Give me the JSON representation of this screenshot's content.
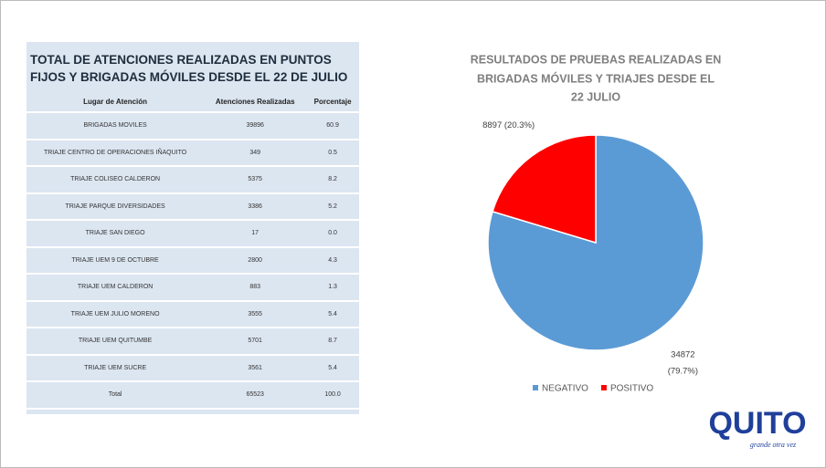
{
  "table": {
    "title": [
      "TOTAL DE ATENCIONES REALIZADAS EN PUNTOS",
      "FIJOS Y BRIGADAS MÓVILES DESDE EL 22 DE JULIO"
    ],
    "header": [
      "Lugar de Atención",
      "Atenciones Realizadas",
      "Porcentaje"
    ],
    "rows": [
      [
        "BRIGADAS MOVILES",
        "39896",
        "60.9"
      ],
      [
        "TRIAJE CENTRO DE OPERACIONES IÑAQUITO",
        "349",
        "0.5"
      ],
      [
        "TRIAJE COLISEO CALDERON",
        "5375",
        "8.2"
      ],
      [
        "TRIAJE PARQUE DIVERSIDADES",
        "3386",
        "5.2"
      ],
      [
        "TRIAJE SAN DIEGO",
        "17",
        "0.0"
      ],
      [
        "TRIAJE UEM 9 DE OCTUBRE",
        "2800",
        "4.3"
      ],
      [
        "TRIAJE UEM CALDERON",
        "883",
        "1.3"
      ],
      [
        "TRIAJE UEM JULIO MORENO",
        "3555",
        "5.4"
      ],
      [
        "TRIAJE UEM QUITUMBE",
        "5701",
        "8.7"
      ],
      [
        "TRIAJE UEM SUCRE",
        "3561",
        "5.4"
      ],
      [
        "Total",
        "65523",
        "100.0"
      ]
    ]
  },
  "chart_data": {
    "type": "pie",
    "title": [
      "RESULTADOS DE PRUEBAS REALIZADAS EN",
      "BRIGADAS MÓVILES Y TRIAJES DESDE EL",
      "22 JULIO"
    ],
    "categories": [
      "NEGATIVO",
      "POSITIVO"
    ],
    "values": [
      34872,
      8897
    ],
    "value_labels": [
      "34872 (79.7%)",
      "8897 (20.3%)"
    ],
    "colors": [
      "#5b9bd5",
      "#ff0000"
    ],
    "legend": "bottom"
  },
  "logo": {
    "name": "QUITO",
    "tagline": "grande otra vez"
  }
}
